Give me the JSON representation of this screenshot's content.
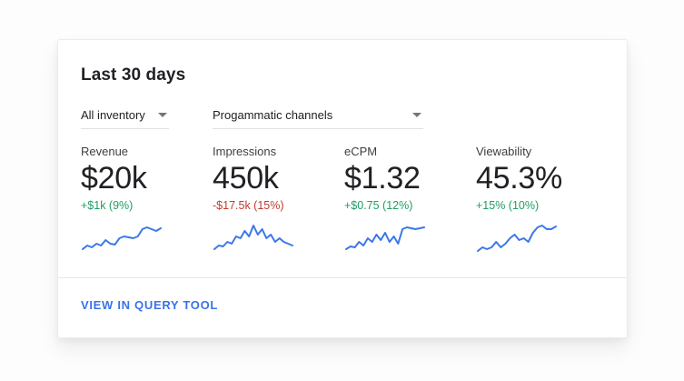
{
  "card": {
    "title": "Last 30 days",
    "filters": [
      {
        "label": "All inventory"
      },
      {
        "label": "Progammatic channels"
      }
    ],
    "metrics": [
      {
        "label": "Revenue",
        "value": "$20k",
        "delta": "+$1k (9%)",
        "trend": "up"
      },
      {
        "label": "Impressions",
        "value": "450k",
        "delta": "-$17.5k (15%)",
        "trend": "down"
      },
      {
        "label": "eCPM",
        "value": "$1.32",
        "delta": "+$0.75 (12%)",
        "trend": "up"
      },
      {
        "label": "Viewability",
        "value": "45.3%",
        "delta": "+15% (10%)",
        "trend": "up"
      }
    ],
    "footer_link": "VIEW IN QUERY TOOL"
  },
  "colors": {
    "positive": "#1e9e62",
    "negative": "#c5392f",
    "link": "#3973e8",
    "sparkline": "#3b78e8"
  },
  "chart_data": [
    {
      "type": "line",
      "name": "Revenue trend",
      "values": [
        6,
        10,
        8,
        12,
        10,
        16,
        12,
        11,
        18,
        20,
        19,
        18,
        20,
        28,
        30,
        28,
        26,
        29
      ]
    },
    {
      "type": "line",
      "name": "Impressions trend",
      "values": [
        6,
        10,
        9,
        14,
        12,
        20,
        18,
        26,
        20,
        32,
        22,
        28,
        18,
        22,
        14,
        18,
        14,
        12,
        10
      ]
    },
    {
      "type": "line",
      "name": "eCPM trend",
      "values": [
        6,
        9,
        8,
        14,
        10,
        18,
        14,
        22,
        16,
        24,
        14,
        20,
        12,
        28,
        30,
        29,
        28,
        29,
        30
      ]
    },
    {
      "type": "line",
      "name": "Viewability trend",
      "values": [
        4,
        8,
        6,
        8,
        14,
        8,
        12,
        18,
        22,
        16,
        18,
        14,
        24,
        30,
        32,
        28,
        28,
        31
      ]
    }
  ]
}
